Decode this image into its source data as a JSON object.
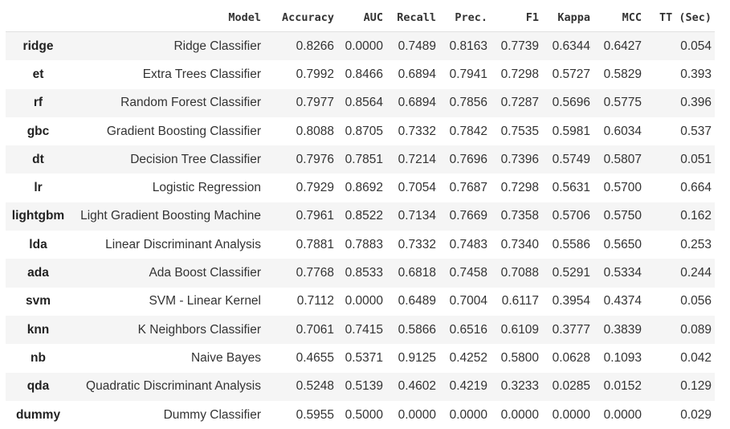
{
  "table": {
    "columns": [
      "",
      "Model",
      "Accuracy",
      "AUC",
      "Recall",
      "Prec.",
      "F1",
      "Kappa",
      "MCC",
      "TT (Sec)"
    ],
    "rows": [
      [
        "ridge",
        "Ridge Classifier",
        "0.8266",
        "0.0000",
        "0.7489",
        "0.8163",
        "0.7739",
        "0.6344",
        "0.6427",
        "0.054"
      ],
      [
        "et",
        "Extra Trees Classifier",
        "0.7992",
        "0.8466",
        "0.6894",
        "0.7941",
        "0.7298",
        "0.5727",
        "0.5829",
        "0.393"
      ],
      [
        "rf",
        "Random Forest Classifier",
        "0.7977",
        "0.8564",
        "0.6894",
        "0.7856",
        "0.7287",
        "0.5696",
        "0.5775",
        "0.396"
      ],
      [
        "gbc",
        "Gradient Boosting Classifier",
        "0.8088",
        "0.8705",
        "0.7332",
        "0.7842",
        "0.7535",
        "0.5981",
        "0.6034",
        "0.537"
      ],
      [
        "dt",
        "Decision Tree Classifier",
        "0.7976",
        "0.7851",
        "0.7214",
        "0.7696",
        "0.7396",
        "0.5749",
        "0.5807",
        "0.051"
      ],
      [
        "lr",
        "Logistic Regression",
        "0.7929",
        "0.8692",
        "0.7054",
        "0.7687",
        "0.7298",
        "0.5631",
        "0.5700",
        "0.664"
      ],
      [
        "lightgbm",
        "Light Gradient Boosting Machine",
        "0.7961",
        "0.8522",
        "0.7134",
        "0.7669",
        "0.7358",
        "0.5706",
        "0.5750",
        "0.162"
      ],
      [
        "lda",
        "Linear Discriminant Analysis",
        "0.7881",
        "0.7883",
        "0.7332",
        "0.7483",
        "0.7340",
        "0.5586",
        "0.5650",
        "0.253"
      ],
      [
        "ada",
        "Ada Boost Classifier",
        "0.7768",
        "0.8533",
        "0.6818",
        "0.7458",
        "0.7088",
        "0.5291",
        "0.5334",
        "0.244"
      ],
      [
        "svm",
        "SVM - Linear Kernel",
        "0.7112",
        "0.0000",
        "0.6489",
        "0.7004",
        "0.6117",
        "0.3954",
        "0.4374",
        "0.056"
      ],
      [
        "knn",
        "K Neighbors Classifier",
        "0.7061",
        "0.7415",
        "0.5866",
        "0.6516",
        "0.6109",
        "0.3777",
        "0.3839",
        "0.089"
      ],
      [
        "nb",
        "Naive Bayes",
        "0.4655",
        "0.5371",
        "0.9125",
        "0.4252",
        "0.5800",
        "0.0628",
        "0.1093",
        "0.042"
      ],
      [
        "qda",
        "Quadratic Discriminant Analysis",
        "0.5248",
        "0.5139",
        "0.4602",
        "0.4219",
        "0.3233",
        "0.0285",
        "0.0152",
        "0.129"
      ],
      [
        "dummy",
        "Dummy Classifier",
        "0.5955",
        "0.5000",
        "0.0000",
        "0.0000",
        "0.0000",
        "0.0000",
        "0.0000",
        "0.029"
      ]
    ]
  }
}
